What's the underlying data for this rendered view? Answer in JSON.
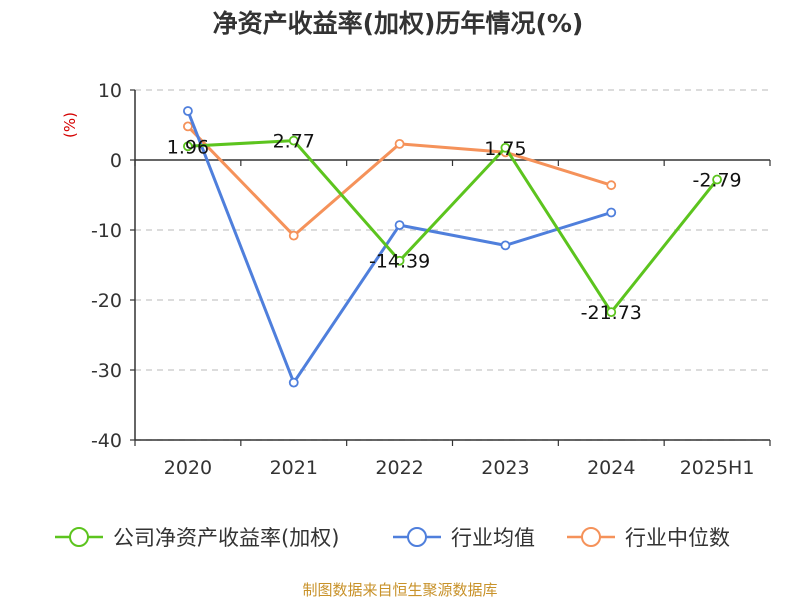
{
  "chart_data": {
    "type": "line",
    "title": "净资产收益率(加权)历年情况(%)",
    "ylabel": "(%)",
    "xlabel": "",
    "categories": [
      "2020",
      "2021",
      "2022",
      "2023",
      "2024",
      "2025H1"
    ],
    "ylim": [
      -40,
      10
    ],
    "yticks": [
      10,
      0,
      -10,
      -20,
      -30,
      -40
    ],
    "grid": true,
    "legend_position": "bottom",
    "series": [
      {
        "name": "公司净资产收益率(加权)",
        "color": "#5cc41e",
        "values": [
          1.96,
          2.77,
          -14.39,
          1.75,
          -21.73,
          -2.79
        ],
        "labels": [
          "1.96",
          "2.77",
          "-14.39",
          "1.75",
          "-21.73",
          "-2.79"
        ]
      },
      {
        "name": "行业均值",
        "color": "#4f7fdc",
        "values": [
          7.0,
          -31.8,
          -9.3,
          -12.2,
          -7.5,
          null
        ]
      },
      {
        "name": "行业中位数",
        "color": "#f5925a",
        "values": [
          4.8,
          -10.8,
          2.3,
          1.1,
          -3.6,
          null
        ]
      }
    ]
  },
  "source": "制图数据来自恒生聚源数据库"
}
